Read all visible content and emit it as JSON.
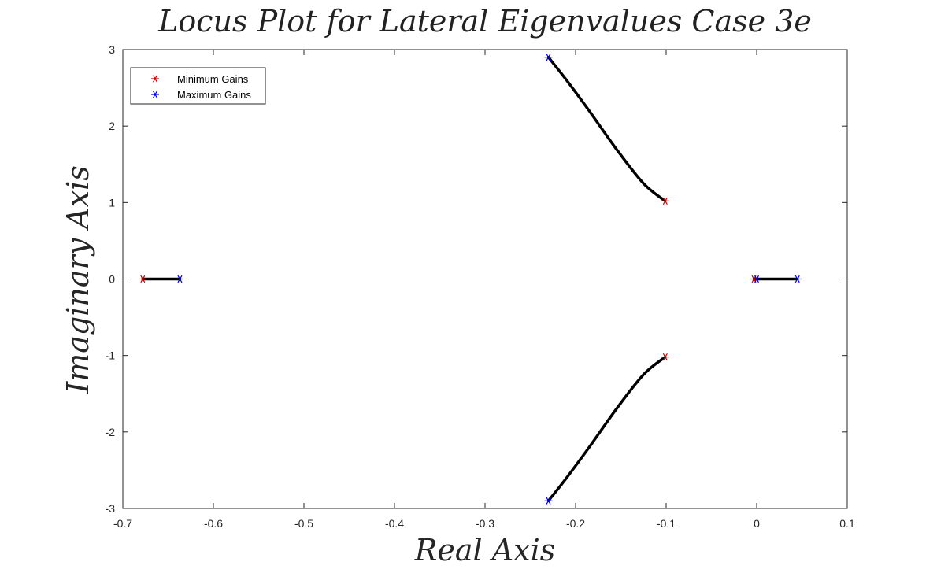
{
  "colors": {
    "min_gain": "#cc0000",
    "max_gain": "#0000ee",
    "locus": "#000000"
  },
  "chart_data": {
    "type": "scatter",
    "title": "Locus Plot for Lateral Eigenvalues Case 3e",
    "xlabel": "Real Axis",
    "ylabel": "Imaginary Axis",
    "xlim": [
      -0.7,
      0.1
    ],
    "ylim": [
      -3,
      3
    ],
    "xticks": [
      -0.7,
      -0.6,
      -0.5,
      -0.4,
      -0.3,
      -0.2,
      -0.1,
      0,
      0.1
    ],
    "xtick_labels": [
      "-0.7",
      "-0.6",
      "-0.5",
      "-0.4",
      "-0.3",
      "-0.2",
      "-0.1",
      "0",
      "0.1"
    ],
    "yticks": [
      3,
      2,
      1,
      0,
      -1,
      -2,
      -3
    ],
    "ytick_labels": [
      "3",
      "2",
      "1",
      "0",
      "-1",
      "-2",
      "-3"
    ],
    "grid": false,
    "legend_position": "top-left",
    "series": [
      {
        "name": "Minimum Gains",
        "marker": "asterisk",
        "color": "#cc0000",
        "points": [
          [
            -0.678,
            0
          ],
          [
            -0.101,
            1.02
          ],
          [
            -0.101,
            -1.02
          ],
          [
            -0.003,
            0
          ]
        ]
      },
      {
        "name": "Maximum Gains",
        "marker": "asterisk",
        "color": "#0000ee",
        "points": [
          [
            -0.637,
            0
          ],
          [
            -0.23,
            2.9
          ],
          [
            -0.23,
            -2.9
          ],
          [
            0.0,
            0
          ],
          [
            0.045,
            0
          ]
        ]
      }
    ],
    "loci": [
      {
        "points": [
          [
            -0.678,
            0
          ],
          [
            -0.637,
            0
          ]
        ]
      },
      {
        "points": [
          [
            -0.101,
            1.02
          ],
          [
            -0.125,
            1.25
          ],
          [
            -0.155,
            1.7
          ],
          [
            -0.185,
            2.2
          ],
          [
            -0.21,
            2.6
          ],
          [
            -0.23,
            2.9
          ]
        ]
      },
      {
        "points": [
          [
            -0.101,
            -1.02
          ],
          [
            -0.125,
            -1.25
          ],
          [
            -0.155,
            -1.7
          ],
          [
            -0.185,
            -2.2
          ],
          [
            -0.21,
            -2.6
          ],
          [
            -0.23,
            -2.9
          ]
        ]
      },
      {
        "points": [
          [
            -0.003,
            0
          ],
          [
            0.045,
            0
          ]
        ]
      }
    ]
  }
}
